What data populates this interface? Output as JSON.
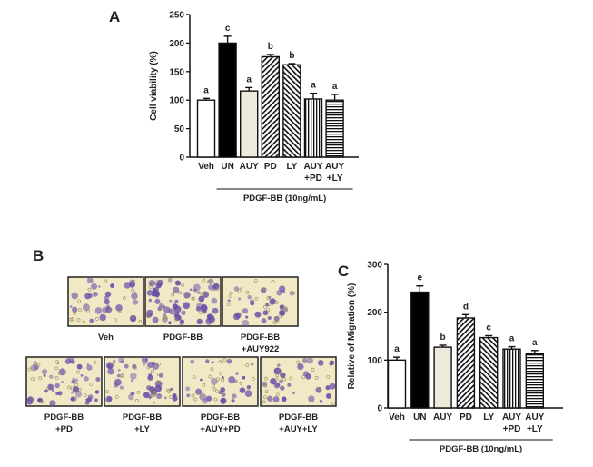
{
  "panels": {
    "a_letter": "A",
    "b_letter": "B",
    "c_letter": "C"
  },
  "micrographs": {
    "top_row": [
      {
        "label": [
          "Veh"
        ],
        "density": "low"
      },
      {
        "label": [
          "PDGF-BB"
        ],
        "density": "high"
      },
      {
        "label": [
          "PDGF-BB",
          "+AUY922"
        ],
        "density": "low"
      }
    ],
    "bottom_row": [
      {
        "label": [
          "PDGF-BB",
          "+PD"
        ],
        "density": "medium"
      },
      {
        "label": [
          "PDGF-BB",
          "+LY"
        ],
        "density": "medium"
      },
      {
        "label": [
          "PDGF-BB",
          "+AUY+PD"
        ],
        "density": "low"
      },
      {
        "label": [
          "PDGF-BB",
          "+AUY+LY"
        ],
        "density": "low"
      }
    ],
    "colors": {
      "background": "#f1e9c6",
      "cell": "#6a4fa8"
    }
  },
  "chart_data": [
    {
      "id": "A",
      "type": "bar",
      "ylabel": "Cell viability  (%)",
      "ylim": [
        0,
        250
      ],
      "yticks": [
        0,
        50,
        100,
        150,
        200,
        250
      ],
      "categories": [
        [
          "Veh"
        ],
        [
          "UN"
        ],
        [
          "AUY"
        ],
        [
          "PD"
        ],
        [
          "LY"
        ],
        [
          "AUY",
          "+PD"
        ],
        [
          "AUY",
          "+LY"
        ]
      ],
      "values": [
        100,
        200,
        116,
        176,
        162,
        102,
        100
      ],
      "errors": [
        3,
        12,
        6,
        4,
        2,
        10,
        10
      ],
      "significance": [
        "a",
        "c",
        "a",
        "b",
        "b",
        "a",
        "a"
      ],
      "fills": [
        "white",
        "black",
        "beige",
        "diag-right",
        "diag-left",
        "vertical",
        "horizontal"
      ],
      "group_label": "PDGF-BB (10ng/mL)",
      "group_span": [
        "UN",
        "AUY+LY"
      ]
    },
    {
      "id": "C",
      "type": "bar",
      "ylabel": "Relative of Migration  (%)",
      "ylim": [
        0,
        300
      ],
      "yticks": [
        0,
        100,
        200,
        300
      ],
      "categories": [
        [
          "Veh"
        ],
        [
          "UN"
        ],
        [
          "AUY"
        ],
        [
          "PD"
        ],
        [
          "LY"
        ],
        [
          "AUY",
          "+PD"
        ],
        [
          "AUY",
          "+LY"
        ]
      ],
      "values": [
        100,
        242,
        127,
        188,
        147,
        123,
        113
      ],
      "errors": [
        6,
        13,
        4,
        7,
        4,
        5,
        7
      ],
      "significance": [
        "a",
        "e",
        "b",
        "d",
        "c",
        "a",
        "a"
      ],
      "fills": [
        "white",
        "black",
        "beige",
        "diag-right",
        "diag-left",
        "vertical",
        "horizontal"
      ],
      "group_label": "PDGF-BB (10ng/mL)",
      "group_span": [
        "UN",
        "AUY+LY"
      ]
    }
  ]
}
